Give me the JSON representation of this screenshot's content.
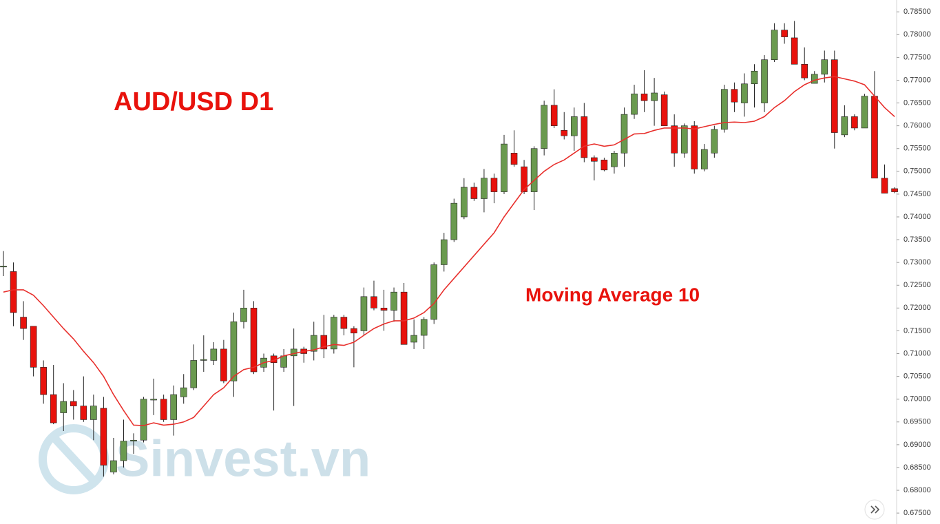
{
  "chart_data": {
    "type": "candlestick",
    "title": "AUD/USD D1",
    "watermark": "Sinvest.vn",
    "up_color": "#6a9a4f",
    "down_color": "#e8120c",
    "open": [
      0.729,
      0.728,
      0.718,
      0.716,
      0.707,
      0.701,
      0.697,
      0.6995,
      0.6985,
      0.6955,
      0.698,
      0.684,
      0.6865,
      0.6908,
      0.691,
      0.6998,
      0.7,
      0.6955,
      0.7005,
      0.7025,
      0.7085,
      0.7085,
      0.711,
      0.704,
      0.717,
      0.72,
      0.707,
      0.7095,
      0.707,
      0.7095,
      0.711,
      0.7105,
      0.714,
      0.711,
      0.718,
      0.7155,
      0.715,
      0.7225,
      0.72,
      0.7195,
      0.7235,
      0.7125,
      0.714,
      0.7175,
      0.7295,
      0.735,
      0.74,
      0.7465,
      0.744,
      0.7485,
      0.7455,
      0.754,
      0.751,
      0.7455,
      0.755,
      0.7645,
      0.759,
      0.7578,
      0.762,
      0.753,
      0.7525,
      0.751,
      0.754,
      0.7625,
      0.767,
      0.7655,
      0.7668,
      0.76,
      0.754,
      0.76,
      0.7505,
      0.754,
      0.7592,
      0.768,
      0.765,
      0.7692,
      0.765,
      0.7745,
      0.781,
      0.7793,
      0.7735,
      0.7693,
      0.7713,
      0.7745,
      0.758,
      0.762,
      0.7595,
      0.7665,
      0.7485,
      0.7462
    ],
    "high": [
      0.7325,
      0.73,
      0.7215,
      0.716,
      0.7085,
      0.7075,
      0.7035,
      0.702,
      0.705,
      0.701,
      0.7005,
      0.6915,
      0.6955,
      0.6925,
      0.7005,
      0.7045,
      0.701,
      0.703,
      0.7055,
      0.712,
      0.714,
      0.7125,
      0.713,
      0.719,
      0.724,
      0.7215,
      0.71,
      0.71,
      0.711,
      0.7155,
      0.7115,
      0.717,
      0.7185,
      0.7185,
      0.7185,
      0.716,
      0.7245,
      0.726,
      0.724,
      0.7245,
      0.7255,
      0.7175,
      0.718,
      0.73,
      0.7365,
      0.744,
      0.7485,
      0.7475,
      0.7505,
      0.7495,
      0.758,
      0.759,
      0.7525,
      0.7555,
      0.7655,
      0.768,
      0.763,
      0.764,
      0.765,
      0.7535,
      0.753,
      0.7545,
      0.764,
      0.769,
      0.7722,
      0.7705,
      0.7675,
      0.7625,
      0.7605,
      0.761,
      0.756,
      0.76,
      0.769,
      0.7695,
      0.7715,
      0.7735,
      0.7755,
      0.7825,
      0.7825,
      0.783,
      0.7772,
      0.772,
      0.7765,
      0.7765,
      0.7645,
      0.7625,
      0.767,
      0.772,
      0.7515,
      0.7465
    ],
    "low": [
      0.727,
      0.716,
      0.713,
      0.705,
      0.699,
      0.6945,
      0.693,
      0.6955,
      0.695,
      0.691,
      0.683,
      0.6835,
      0.685,
      0.688,
      0.6905,
      0.6965,
      0.695,
      0.692,
      0.699,
      0.702,
      0.706,
      0.7075,
      0.7035,
      0.7005,
      0.7155,
      0.7055,
      0.706,
      0.6975,
      0.706,
      0.6985,
      0.708,
      0.7085,
      0.709,
      0.71,
      0.714,
      0.707,
      0.714,
      0.7195,
      0.715,
      0.717,
      0.712,
      0.711,
      0.711,
      0.7165,
      0.728,
      0.7345,
      0.7395,
      0.7435,
      0.741,
      0.743,
      0.745,
      0.751,
      0.745,
      0.7415,
      0.7535,
      0.7595,
      0.757,
      0.7545,
      0.752,
      0.748,
      0.75,
      0.7495,
      0.751,
      0.7615,
      0.763,
      0.76,
      0.76,
      0.751,
      0.753,
      0.7495,
      0.75,
      0.753,
      0.7585,
      0.763,
      0.762,
      0.764,
      0.763,
      0.774,
      0.778,
      0.7735,
      0.77,
      0.7693,
      0.7695,
      0.755,
      0.7575,
      0.759,
      0.7595,
      0.7485,
      0.7452,
      0.7452
    ],
    "close": [
      0.7292,
      0.719,
      0.7155,
      0.707,
      0.701,
      0.6948,
      0.6995,
      0.6985,
      0.6955,
      0.6985,
      0.6855,
      0.6865,
      0.6908,
      0.691,
      0.7,
      0.7,
      0.6955,
      0.701,
      0.7025,
      0.7085,
      0.7087,
      0.711,
      0.704,
      0.717,
      0.72,
      0.706,
      0.709,
      0.708,
      0.7095,
      0.711,
      0.71,
      0.714,
      0.711,
      0.718,
      0.7155,
      0.7145,
      0.7225,
      0.72,
      0.7195,
      0.7235,
      0.712,
      0.714,
      0.7175,
      0.7295,
      0.735,
      0.743,
      0.7465,
      0.744,
      0.7485,
      0.7455,
      0.756,
      0.7515,
      0.7455,
      0.755,
      0.7645,
      0.76,
      0.7578,
      0.762,
      0.753,
      0.7522,
      0.7503,
      0.754,
      0.7625,
      0.767,
      0.7655,
      0.7672,
      0.76,
      0.754,
      0.76,
      0.7505,
      0.7548,
      0.7592,
      0.768,
      0.7652,
      0.7692,
      0.772,
      0.7745,
      0.781,
      0.7795,
      0.7735,
      0.7705,
      0.7713,
      0.7745,
      0.7585,
      0.762,
      0.7595,
      0.7665,
      0.7485,
      0.7452,
      0.7455
    ],
    "series": [
      {
        "name": "Moving Average 10",
        "color": "#e8302d",
        "values": [
          0.7235,
          0.724,
          0.724,
          0.7228,
          0.7205,
          0.718,
          0.7155,
          0.7132,
          0.7105,
          0.708,
          0.705,
          0.701,
          0.6975,
          0.6943,
          0.6942,
          0.6948,
          0.6943,
          0.6945,
          0.695,
          0.696,
          0.6985,
          0.701,
          0.7025,
          0.705,
          0.7065,
          0.707,
          0.708,
          0.7085,
          0.7095,
          0.71,
          0.7105,
          0.7108,
          0.7115,
          0.712,
          0.7118,
          0.7125,
          0.714,
          0.7155,
          0.7165,
          0.7172,
          0.7172,
          0.7178,
          0.719,
          0.721,
          0.724,
          0.7265,
          0.729,
          0.7315,
          0.734,
          0.7365,
          0.74,
          0.743,
          0.746,
          0.748,
          0.75,
          0.7515,
          0.7525,
          0.754,
          0.7555,
          0.756,
          0.7555,
          0.7558,
          0.757,
          0.7582,
          0.7583,
          0.759,
          0.7595,
          0.7595,
          0.7595,
          0.7593,
          0.7598,
          0.7603,
          0.7607,
          0.7608,
          0.7607,
          0.761,
          0.762,
          0.764,
          0.7655,
          0.7675,
          0.769,
          0.77,
          0.7705,
          0.7708,
          0.7703,
          0.7698,
          0.769,
          0.7665,
          0.764,
          0.762
        ]
      }
    ],
    "ylim": [
      0.6726,
      0.7876
    ],
    "yticks": [
      {
        "value": 0.675,
        "label": "0.67500"
      },
      {
        "value": 0.68,
        "label": "0.68000"
      },
      {
        "value": 0.685,
        "label": "0.68500"
      },
      {
        "value": 0.69,
        "label": "0.69000"
      },
      {
        "value": 0.695,
        "label": "0.69500"
      },
      {
        "value": 0.7,
        "label": "0.70000"
      },
      {
        "value": 0.705,
        "label": "0.70500"
      },
      {
        "value": 0.71,
        "label": "0.71000"
      },
      {
        "value": 0.715,
        "label": "0.71500"
      },
      {
        "value": 0.72,
        "label": "0.72000"
      },
      {
        "value": 0.725,
        "label": "0.72500"
      },
      {
        "value": 0.73,
        "label": "0.73000"
      },
      {
        "value": 0.735,
        "label": "0.73500"
      },
      {
        "value": 0.74,
        "label": "0.74000"
      },
      {
        "value": 0.745,
        "label": "0.74500"
      },
      {
        "value": 0.75,
        "label": "0.75000"
      },
      {
        "value": 0.755,
        "label": "0.75500"
      },
      {
        "value": 0.76,
        "label": "0.76000"
      },
      {
        "value": 0.765,
        "label": "0.76500"
      },
      {
        "value": 0.77,
        "label": "0.77000"
      },
      {
        "value": 0.775,
        "label": "0.77500"
      },
      {
        "value": 0.78,
        "label": "0.78000"
      },
      {
        "value": 0.785,
        "label": "0.78500"
      }
    ]
  }
}
